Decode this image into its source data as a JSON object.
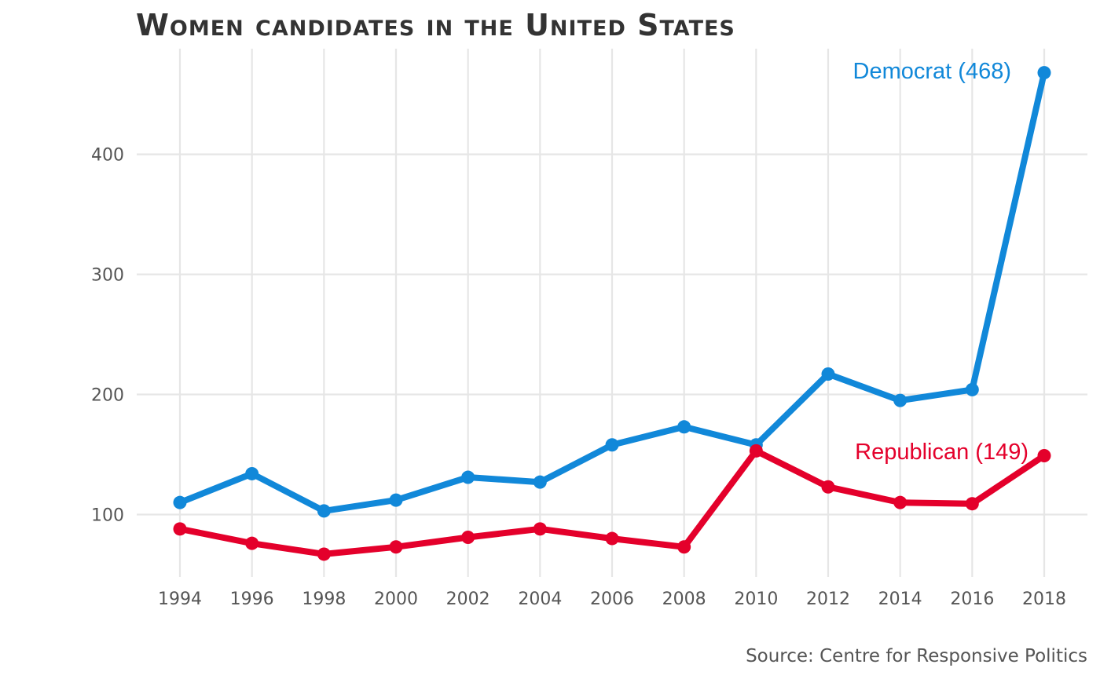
{
  "chart_data": {
    "type": "line",
    "title": "Women candidates in the United States",
    "caption": "Source: Centre for Responsive Politics",
    "xlabel": "",
    "ylabel": "",
    "x": [
      1994,
      1996,
      1998,
      2000,
      2002,
      2004,
      2006,
      2008,
      2010,
      2012,
      2014,
      2016,
      2018
    ],
    "x_tick_labels": [
      "1994",
      "1996",
      "1998",
      "2000",
      "2002",
      "2004",
      "2006",
      "2008",
      "2010",
      "2012",
      "2014",
      "2016",
      "2018"
    ],
    "y_ticks": [
      100,
      200,
      300,
      400
    ],
    "y_tick_labels": [
      "100",
      "200",
      "300",
      "400"
    ],
    "xlim": [
      1992.8,
      2019.2
    ],
    "ylim": [
      48,
      488
    ],
    "grid": true,
    "legend": "none (direct labels)",
    "series": [
      {
        "name": "Democrat",
        "label": "Democrat (468)",
        "color": "#1188d9",
        "values": [
          110,
          134,
          103,
          112,
          131,
          127,
          158,
          173,
          158,
          217,
          195,
          204,
          468
        ]
      },
      {
        "name": "Republican",
        "label": "Republican (149)",
        "color": "#e4002b",
        "values": [
          88,
          76,
          67,
          73,
          81,
          88,
          80,
          73,
          153,
          123,
          110,
          109,
          149
        ]
      }
    ]
  }
}
